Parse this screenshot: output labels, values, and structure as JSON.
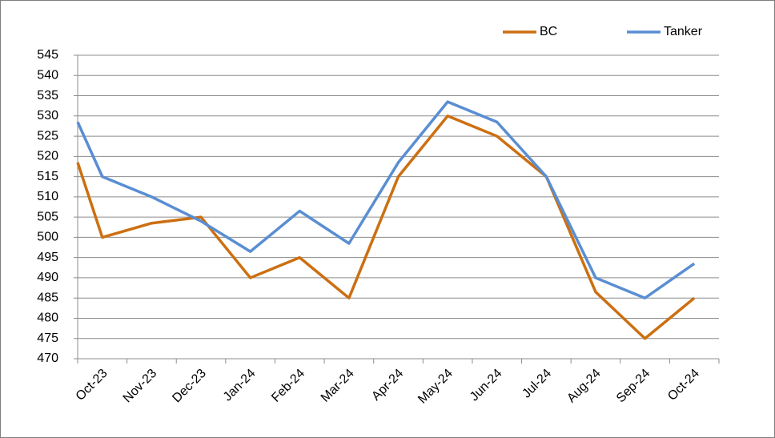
{
  "chart_data": {
    "type": "line",
    "categories": [
      null,
      "Oct-23",
      "Nov-23",
      "Dec-23",
      "Jan-24",
      "Feb-24",
      "Mar-24",
      "Apr-24",
      "May-24",
      "Jun-24",
      "Jul-24",
      "Aug-24",
      "Sep-24",
      "Oct-24"
    ],
    "series": [
      {
        "name": "BC",
        "color": "#cc6f11",
        "values": [
          518.5,
          500,
          503.5,
          505,
          490,
          495,
          485,
          515,
          530,
          525,
          515,
          486.5,
          475,
          485
        ]
      },
      {
        "name": "Tanker",
        "color": "#5a8ed2",
        "values": [
          528.5,
          515,
          510,
          504,
          496.5,
          506.5,
          498.5,
          518.5,
          533.5,
          528.5,
          515,
          490,
          485,
          493.5
        ]
      }
    ],
    "ylim": [
      470,
      545
    ],
    "yticks": [
      470,
      475,
      480,
      485,
      490,
      495,
      500,
      505,
      510,
      515,
      520,
      525,
      530,
      535,
      540,
      545
    ],
    "grid": true,
    "legend": "top-right"
  }
}
